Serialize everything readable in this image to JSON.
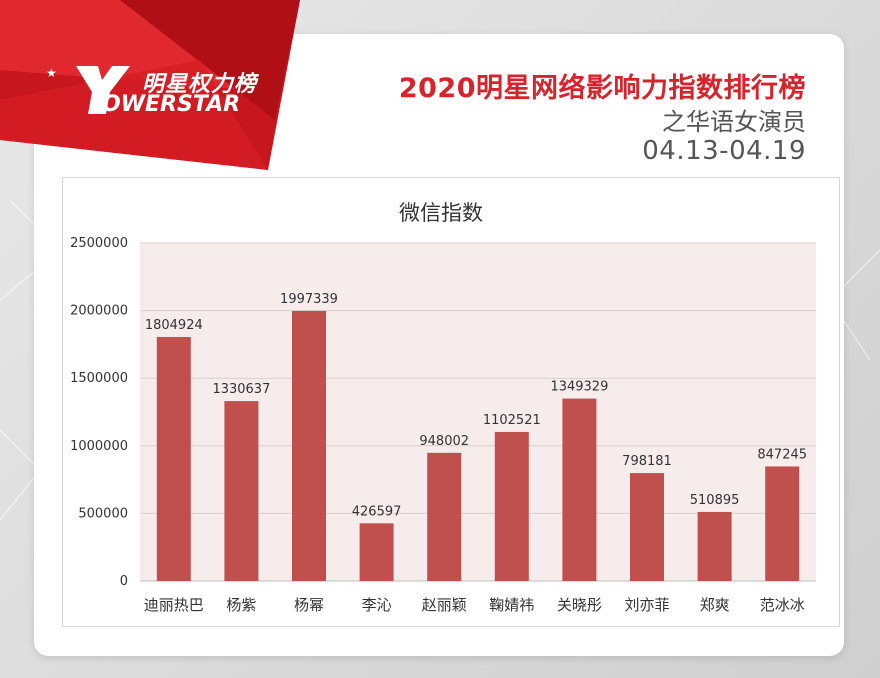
{
  "header": {
    "logo_cn": "明星权力榜",
    "logo_en": "OWERSTAR",
    "logo_mark_letter": "Y",
    "title": "2020明星网络影响力指数排行榜",
    "subtitle": "之华语女演员",
    "date_range": "04.13-04.19"
  },
  "colors": {
    "brand_red": "#d7242c",
    "bar": "#c0504d",
    "plot_bg": "#f7ecec"
  },
  "chart_data": {
    "type": "bar",
    "title": "微信指数",
    "categories": [
      "迪丽热巴",
      "杨紫",
      "杨幂",
      "李沁",
      "赵丽颖",
      "鞠婧祎",
      "关晓彤",
      "刘亦菲",
      "郑爽",
      "范冰冰"
    ],
    "values": [
      1804924,
      1330637,
      1997339,
      426597,
      948002,
      1102521,
      1349329,
      798181,
      510895,
      847245
    ],
    "data_labels": [
      "1804924",
      "1330637",
      "1997339",
      "426597",
      "948002",
      "1102521",
      "1349329",
      "798181",
      "510895",
      "847245"
    ],
    "yticks": [
      "0",
      "500000",
      "1000000",
      "1500000",
      "2000000",
      "2500000"
    ],
    "ytick_values": [
      0,
      500000,
      1000000,
      1500000,
      2000000,
      2500000
    ],
    "ylim": [
      0,
      2500000
    ],
    "grid": true,
    "legend": false
  }
}
